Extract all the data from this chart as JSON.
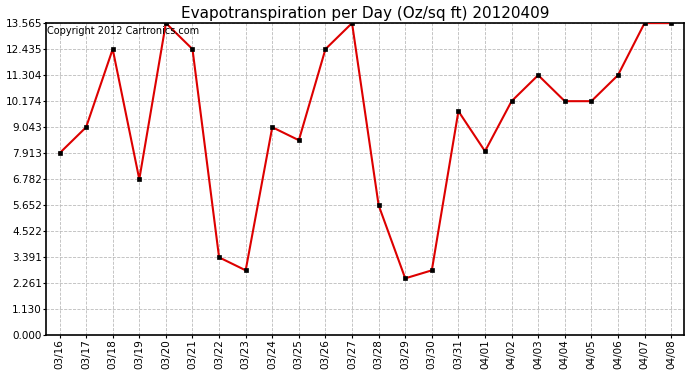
{
  "title": "Evapotranspiration per Day (Oz/sq ft) 20120409",
  "copyright_text": "Copyright 2012 Cartronics.com",
  "x_labels": [
    "03/16",
    "03/17",
    "03/18",
    "03/19",
    "03/20",
    "03/21",
    "03/22",
    "03/23",
    "03/24",
    "03/25",
    "03/26",
    "03/27",
    "03/28",
    "03/29",
    "03/30",
    "03/31",
    "04/01",
    "04/02",
    "04/03",
    "04/04",
    "04/05",
    "04/06",
    "04/07",
    "04/08"
  ],
  "y_values": [
    7.913,
    9.043,
    12.435,
    6.782,
    13.565,
    12.435,
    3.391,
    2.826,
    9.043,
    8.478,
    12.435,
    13.565,
    5.652,
    2.478,
    2.826,
    9.739,
    8.0,
    10.174,
    11.304,
    10.174,
    10.174,
    11.304,
    13.565,
    13.565
  ],
  "line_color": "#dd0000",
  "marker": "s",
  "marker_size": 3,
  "bg_color": "#ffffff",
  "plot_bg_color": "#ffffff",
  "grid_color": "#bbbbbb",
  "yticks": [
    0.0,
    1.13,
    2.261,
    3.391,
    4.522,
    5.652,
    6.782,
    7.913,
    9.043,
    10.174,
    11.304,
    12.435,
    13.565
  ],
  "ylim": [
    0.0,
    13.565
  ],
  "title_fontsize": 11,
  "copyright_fontsize": 7,
  "tick_fontsize": 7.5,
  "line_width": 1.5
}
